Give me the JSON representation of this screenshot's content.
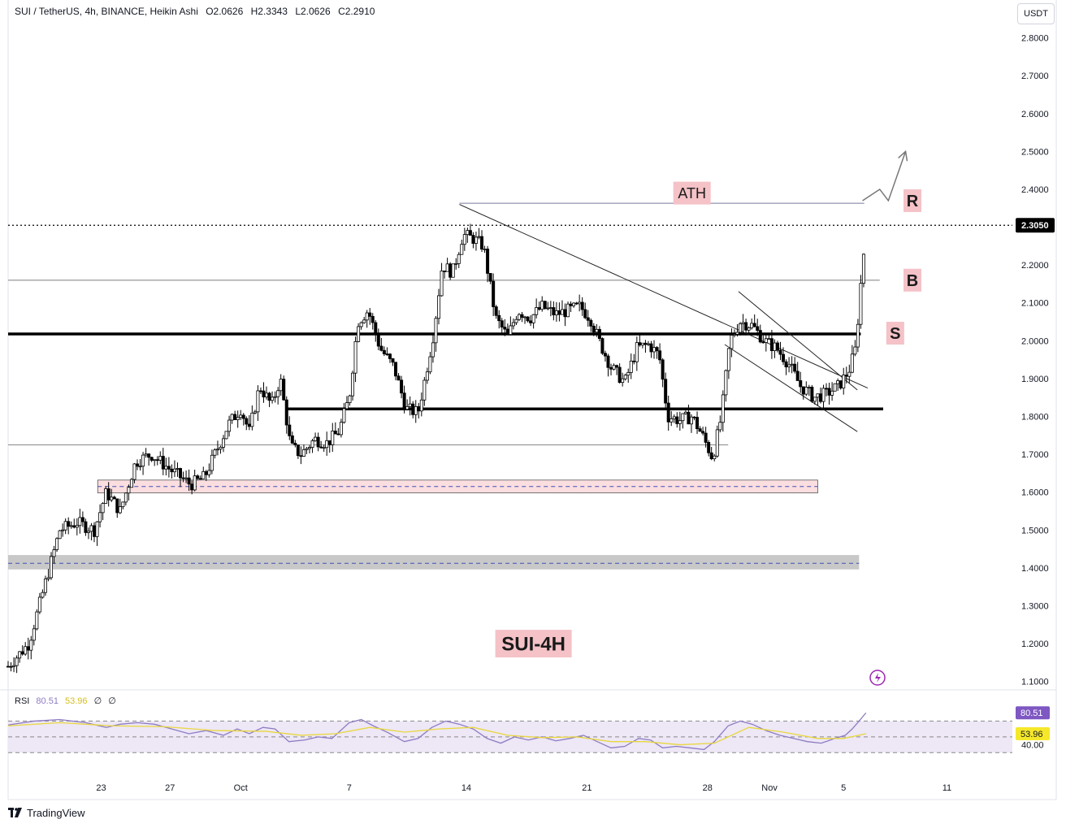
{
  "header": {
    "symbol": "SUI / TetherUS, 4h, BINANCE, Heikin Ashi",
    "open": "O2.0626",
    "high": "H2.3343",
    "low": "L2.0626",
    "close": "C2.2910"
  },
  "currency_button": "USDT",
  "colors": {
    "up": "#2a2a2a",
    "down": "#000000",
    "rsi_line": "#8e7cc3",
    "rsi_ma": "#e9d73e",
    "rsi_band": "#ede7f6",
    "label_bg": "#f4c2c7",
    "zone_pink": "#f8c8cc",
    "zone_gray": "#c2c2c2",
    "ath_line": "#9e9eb8"
  },
  "rsi_header": {
    "name": "RSI",
    "value": "80.51",
    "ma_value": "53.96",
    "extra1": "∅",
    "extra2": "∅"
  },
  "brand": "TradingView",
  "chart_data": {
    "type": "candlestick",
    "title": "SUI / TetherUS, 4h, BINANCE, Heikin Ashi",
    "candle_style": "Heikin Ashi",
    "y_axis": {
      "range": [
        1.08,
        2.9
      ],
      "ticks": [
        1.1,
        1.2,
        1.3,
        1.4,
        1.5,
        1.6,
        1.7,
        1.8,
        1.9,
        2.0,
        2.1,
        2.2,
        2.3,
        2.4,
        2.5,
        2.6,
        2.7,
        2.8
      ],
      "tick_labels": [
        "1.1000",
        "1.2000",
        "1.3000",
        "1.4000",
        "1.5000",
        "1.6000",
        "1.7000",
        "1.8000",
        "1.9000",
        "2.0000",
        "2.1000",
        "2.2000",
        "2.3000",
        "2.4000",
        "2.5000",
        "2.6000",
        "2.7000",
        "2.8000"
      ],
      "current_price": 2.305,
      "current_price_label": "2.3050"
    },
    "x_axis": {
      "range_days": [
        0,
        58.3
      ],
      "ticks": [
        {
          "day": 5.4,
          "label": "23"
        },
        {
          "day": 9.4,
          "label": "27"
        },
        {
          "day": 13.5,
          "label": "Oct"
        },
        {
          "day": 19.8,
          "label": "7"
        },
        {
          "day": 26.6,
          "label": "14"
        },
        {
          "day": 33.6,
          "label": "21"
        },
        {
          "day": 40.6,
          "label": "28"
        },
        {
          "day": 44.2,
          "label": "Nov"
        },
        {
          "day": 48.5,
          "label": "5"
        },
        {
          "day": 54.5,
          "label": "11"
        }
      ]
    },
    "price_path": [
      [
        0,
        1.14
      ],
      [
        1.2,
        1.2
      ],
      [
        2.1,
        1.35
      ],
      [
        3.0,
        1.5
      ],
      [
        4.0,
        1.52
      ],
      [
        5.0,
        1.5
      ],
      [
        5.7,
        1.6
      ],
      [
        6.5,
        1.55
      ],
      [
        7.4,
        1.68
      ],
      [
        8.3,
        1.7
      ],
      [
        9.4,
        1.66
      ],
      [
        10.6,
        1.62
      ],
      [
        11.4,
        1.64
      ],
      [
        12.0,
        1.7
      ],
      [
        12.8,
        1.78
      ],
      [
        13.5,
        1.82
      ],
      [
        14.0,
        1.76
      ],
      [
        14.6,
        1.88
      ],
      [
        15.3,
        1.83
      ],
      [
        15.8,
        1.9
      ],
      [
        16.4,
        1.72
      ],
      [
        17.0,
        1.7
      ],
      [
        17.8,
        1.74
      ],
      [
        18.5,
        1.73
      ],
      [
        19.2,
        1.76
      ],
      [
        19.8,
        1.85
      ],
      [
        20.3,
        2.05
      ],
      [
        20.9,
        2.08
      ],
      [
        21.6,
        1.98
      ],
      [
        22.4,
        1.93
      ],
      [
        23.1,
        1.82
      ],
      [
        23.8,
        1.81
      ],
      [
        24.2,
        1.9
      ],
      [
        24.7,
        2.02
      ],
      [
        25.2,
        2.2
      ],
      [
        25.8,
        2.18
      ],
      [
        26.4,
        2.28
      ],
      [
        27.0,
        2.27
      ],
      [
        27.6,
        2.25
      ],
      [
        28.3,
        2.06
      ],
      [
        29.0,
        2.01
      ],
      [
        29.6,
        2.08
      ],
      [
        30.3,
        2.06
      ],
      [
        31.0,
        2.09
      ],
      [
        31.8,
        2.07
      ],
      [
        32.5,
        2.08
      ],
      [
        33.2,
        2.09
      ],
      [
        33.8,
        2.06
      ],
      [
        34.3,
        2.0
      ],
      [
        35.0,
        1.93
      ],
      [
        35.8,
        1.89
      ],
      [
        36.5,
        1.98
      ],
      [
        37.2,
        1.99
      ],
      [
        37.8,
        1.96
      ],
      [
        38.3,
        1.8
      ],
      [
        39.0,
        1.79
      ],
      [
        39.7,
        1.8
      ],
      [
        40.3,
        1.75
      ],
      [
        40.9,
        1.69
      ],
      [
        41.4,
        1.8
      ],
      [
        41.9,
        2.0
      ],
      [
        42.5,
        2.05
      ],
      [
        43.2,
        2.04
      ],
      [
        43.9,
        2.0
      ],
      [
        44.6,
        1.98
      ],
      [
        45.3,
        1.94
      ],
      [
        46.0,
        1.88
      ],
      [
        46.8,
        1.85
      ],
      [
        47.5,
        1.86
      ],
      [
        48.2,
        1.88
      ],
      [
        48.8,
        1.92
      ],
      [
        49.2,
        1.98
      ],
      [
        49.5,
        2.15
      ],
      [
        49.8,
        2.3
      ]
    ],
    "horizontal_levels": [
      {
        "name": "ath",
        "price": 2.363,
        "start_day": 26.2,
        "end_day": 49.7
      },
      {
        "name": "level-b",
        "price": 2.16,
        "start_day": 0,
        "end_day": 50.6
      },
      {
        "name": "level-s",
        "price": 2.018,
        "start_day": 0,
        "end_day": 49.5
      },
      {
        "name": "level-1820",
        "price": 1.82,
        "start_day": 16.1,
        "end_day": 50.8
      },
      {
        "name": "level-1725",
        "price": 1.725,
        "start_day": 0,
        "end_day": 41.8
      }
    ],
    "zones": [
      {
        "name": "support-zone-pink",
        "top": 1.632,
        "bottom": 1.598,
        "start_day": 5.2,
        "end_day": 47.0,
        "mid": 1.615
      },
      {
        "name": "support-zone-gray",
        "top": 1.434,
        "bottom": 1.396,
        "start_day": 0,
        "end_day": 49.4,
        "mid": 1.412
      }
    ],
    "trendlines": [
      {
        "name": "trendline-descending",
        "from": [
          26.2,
          2.36
        ],
        "to": [
          49.9,
          1.875
        ]
      },
      {
        "name": "wedge-upper",
        "from": [
          42.4,
          2.13
        ],
        "to": [
          49.3,
          1.87
        ]
      },
      {
        "name": "wedge-lower",
        "from": [
          41.6,
          1.99
        ],
        "to": [
          49.3,
          1.76
        ]
      }
    ],
    "projection_arrow": [
      [
        49.6,
        2.37
      ],
      [
        50.6,
        2.4
      ],
      [
        51.1,
        2.37
      ],
      [
        52.1,
        2.5
      ]
    ],
    "annotations": [
      {
        "text": "ATH",
        "day": 39.7,
        "price": 2.39
      },
      {
        "text": "R",
        "day": 52.5,
        "price": 2.37
      },
      {
        "text": "B",
        "day": 52.5,
        "price": 2.16
      },
      {
        "text": "S",
        "day": 51.5,
        "price": 2.02
      },
      {
        "text": "SUI-4H",
        "day": 30.5,
        "price": 1.2
      }
    ],
    "rsi": {
      "value": 80.51,
      "ma": 53.96,
      "levels": [
        70,
        50,
        30
      ],
      "axis_labels": [
        "80.51",
        "53.96",
        "40.00"
      ],
      "range": [
        20,
        90
      ],
      "path": [
        [
          0,
          65
        ],
        [
          1.5,
          70
        ],
        [
          3.0,
          72
        ],
        [
          4.5,
          68
        ],
        [
          5.7,
          62
        ],
        [
          6.5,
          66
        ],
        [
          7.5,
          68
        ],
        [
          8.5,
          66
        ],
        [
          9.5,
          60
        ],
        [
          10.5,
          54
        ],
        [
          11.5,
          58
        ],
        [
          12.5,
          52
        ],
        [
          13.3,
          60
        ],
        [
          14.0,
          54
        ],
        [
          14.8,
          62
        ],
        [
          15.5,
          60
        ],
        [
          16.3,
          44
        ],
        [
          17.2,
          46
        ],
        [
          18.0,
          50
        ],
        [
          18.8,
          48
        ],
        [
          19.8,
          68
        ],
        [
          20.5,
          72
        ],
        [
          21.2,
          64
        ],
        [
          22.0,
          56
        ],
        [
          23.0,
          44
        ],
        [
          23.8,
          48
        ],
        [
          24.6,
          62
        ],
        [
          25.4,
          70
        ],
        [
          26.2,
          66
        ],
        [
          27.0,
          60
        ],
        [
          27.8,
          48
        ],
        [
          28.6,
          42
        ],
        [
          29.4,
          50
        ],
        [
          30.2,
          46
        ],
        [
          31.0,
          50
        ],
        [
          31.8,
          45
        ],
        [
          32.6,
          48
        ],
        [
          33.4,
          52
        ],
        [
          34.2,
          44
        ],
        [
          35.0,
          36
        ],
        [
          35.8,
          38
        ],
        [
          36.6,
          48
        ],
        [
          37.3,
          46
        ],
        [
          38.0,
          36
        ],
        [
          38.8,
          38
        ],
        [
          39.6,
          36
        ],
        [
          40.4,
          34
        ],
        [
          41.0,
          44
        ],
        [
          41.8,
          64
        ],
        [
          42.5,
          70
        ],
        [
          43.2,
          66
        ],
        [
          44.0,
          58
        ],
        [
          44.8,
          52
        ],
        [
          45.6,
          48
        ],
        [
          46.4,
          44
        ],
        [
          47.2,
          42
        ],
        [
          48.0,
          48
        ],
        [
          48.6,
          52
        ],
        [
          49.0,
          60
        ],
        [
          49.4,
          70
        ],
        [
          49.8,
          80.5
        ]
      ],
      "ma_path": [
        [
          0,
          64
        ],
        [
          3.0,
          68
        ],
        [
          6.0,
          64
        ],
        [
          9.0,
          63
        ],
        [
          12.0,
          58
        ],
        [
          15.0,
          57
        ],
        [
          17.0,
          52
        ],
        [
          19.0,
          54
        ],
        [
          21.0,
          62
        ],
        [
          23.0,
          56
        ],
        [
          25.0,
          60
        ],
        [
          27.0,
          62
        ],
        [
          29.0,
          52
        ],
        [
          31.0,
          49
        ],
        [
          33.0,
          50
        ],
        [
          35.0,
          44
        ],
        [
          37.0,
          44
        ],
        [
          39.0,
          40
        ],
        [
          41.0,
          42
        ],
        [
          43.0,
          62
        ],
        [
          45.0,
          56
        ],
        [
          47.0,
          48
        ],
        [
          48.5,
          48
        ],
        [
          49.8,
          54
        ]
      ]
    }
  }
}
